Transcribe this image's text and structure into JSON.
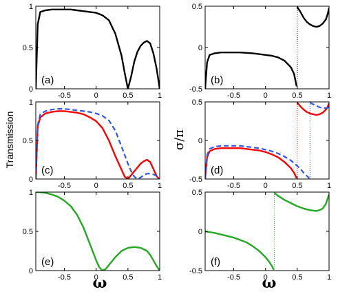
{
  "ylabels": {
    "left": "Transmission",
    "right": "σ/π"
  },
  "xlabels": {
    "left": "ω",
    "right": "ω"
  },
  "colors": {
    "black": "#000000",
    "red": "#ff0000",
    "blue": "#3355ee",
    "green": "#22aa22"
  },
  "chart_data": [
    {
      "id": "a",
      "panel_label": "(a)",
      "type": "line",
      "xlim": [
        -0.95,
        1
      ],
      "ylim": [
        0,
        1
      ],
      "xticks": [
        "-0.5",
        "0",
        "0.5",
        "1"
      ],
      "yticks": [
        "0",
        "0.5",
        "1"
      ],
      "series": [
        {
          "color": "black",
          "style": "solid",
          "x": [
            -0.95,
            -0.92,
            -0.88,
            -0.8,
            -0.7,
            -0.6,
            -0.5,
            -0.4,
            -0.3,
            -0.2,
            -0.1,
            0,
            0.1,
            0.2,
            0.3,
            0.4,
            0.45,
            0.5,
            0.55,
            0.6,
            0.65,
            0.7,
            0.75,
            0.8,
            0.85,
            0.9,
            0.95,
            0.98,
            1
          ],
          "y": [
            0,
            0.78,
            0.93,
            0.95,
            0.96,
            0.96,
            0.96,
            0.96,
            0.95,
            0.94,
            0.93,
            0.92,
            0.89,
            0.83,
            0.67,
            0.4,
            0.19,
            0.0,
            0.15,
            0.33,
            0.45,
            0.52,
            0.56,
            0.58,
            0.55,
            0.43,
            0.25,
            0.1,
            0
          ]
        }
      ]
    },
    {
      "id": "b",
      "panel_label": "(b)",
      "type": "line",
      "xlim": [
        -0.95,
        1
      ],
      "ylim": [
        -0.5,
        0.5
      ],
      "xticks": [
        "-0.5",
        "0",
        "0.5",
        "1"
      ],
      "yticks": [
        "-0.5",
        "0",
        "0.5"
      ],
      "vlines": [
        {
          "x": 0.5,
          "color": "black"
        }
      ],
      "series": [
        {
          "color": "black",
          "style": "solid",
          "x": [
            -0.95,
            -0.92,
            -0.88,
            -0.8,
            -0.7,
            -0.6,
            -0.5,
            -0.4,
            -0.3,
            -0.2,
            -0.1,
            0,
            0.1,
            0.2,
            0.3,
            0.4,
            0.45,
            0.49
          ],
          "y": [
            -0.5,
            -0.18,
            -0.09,
            -0.07,
            -0.06,
            -0.06,
            -0.06,
            -0.06,
            -0.065,
            -0.07,
            -0.08,
            -0.09,
            -0.1,
            -0.12,
            -0.16,
            -0.24,
            -0.32,
            -0.47
          ]
        },
        {
          "color": "black",
          "style": "solid",
          "x": [
            0.5,
            0.55,
            0.6,
            0.65,
            0.7,
            0.75,
            0.8,
            0.85,
            0.9,
            0.95,
            0.98,
            1
          ],
          "y": [
            0.49,
            0.43,
            0.36,
            0.31,
            0.28,
            0.26,
            0.25,
            0.26,
            0.29,
            0.34,
            0.41,
            0.48
          ]
        }
      ]
    },
    {
      "id": "c",
      "panel_label": "(c)",
      "type": "line",
      "xlim": [
        -0.95,
        1
      ],
      "ylim": [
        0,
        1
      ],
      "xticks": [
        "-0.5",
        "0",
        "0.5",
        "1"
      ],
      "yticks": [
        "0",
        "0.5",
        "1"
      ],
      "series": [
        {
          "color": "red",
          "style": "solid",
          "x": [
            -0.95,
            -0.92,
            -0.88,
            -0.8,
            -0.7,
            -0.6,
            -0.5,
            -0.4,
            -0.3,
            -0.2,
            -0.1,
            0,
            0.1,
            0.2,
            0.3,
            0.4,
            0.45,
            0.5,
            0.55,
            0.6,
            0.65,
            0.7,
            0.75,
            0.8,
            0.85,
            0.9,
            0.95,
            0.98,
            1
          ],
          "y": [
            0,
            0.68,
            0.8,
            0.85,
            0.87,
            0.88,
            0.88,
            0.87,
            0.86,
            0.84,
            0.8,
            0.75,
            0.66,
            0.5,
            0.3,
            0.12,
            0.03,
            0.0,
            0.05,
            0.1,
            0.15,
            0.2,
            0.23,
            0.25,
            0.22,
            0.13,
            0.04,
            0.01,
            0
          ]
        },
        {
          "color": "blue",
          "style": "dashed",
          "x": [
            -0.95,
            -0.92,
            -0.88,
            -0.8,
            -0.7,
            -0.6,
            -0.5,
            -0.4,
            -0.3,
            -0.2,
            -0.1,
            0,
            0.1,
            0.2,
            0.3,
            0.4,
            0.5,
            0.55,
            0.6,
            0.65,
            0.7,
            0.75,
            0.8,
            0.85,
            0.9,
            0.95,
            0.98,
            1
          ],
          "y": [
            0,
            0.7,
            0.84,
            0.88,
            0.9,
            0.91,
            0.91,
            0.9,
            0.89,
            0.88,
            0.87,
            0.85,
            0.82,
            0.76,
            0.63,
            0.42,
            0.2,
            0.1,
            0.03,
            0.0,
            0.02,
            0.05,
            0.07,
            0.07,
            0.06,
            0.04,
            0.02,
            0
          ]
        }
      ]
    },
    {
      "id": "d",
      "panel_label": "(d)",
      "type": "line",
      "xlim": [
        -0.95,
        1
      ],
      "ylim": [
        -0.5,
        0.5
      ],
      "xticks": [
        "-0.5",
        "0",
        "0.5",
        "1"
      ],
      "yticks": [
        "-0.5",
        "0",
        "0.5"
      ],
      "vlines": [
        {
          "x": 0.5,
          "color": "red"
        },
        {
          "x": 0.7,
          "color": "blue"
        }
      ],
      "series": [
        {
          "color": "red",
          "style": "solid",
          "x": [
            -0.95,
            -0.92,
            -0.88,
            -0.8,
            -0.7,
            -0.6,
            -0.5,
            -0.4,
            -0.3,
            -0.2,
            -0.1,
            0,
            0.1,
            0.2,
            0.3,
            0.4,
            0.45,
            0.49
          ],
          "y": [
            -0.5,
            -0.22,
            -0.14,
            -0.11,
            -0.1,
            -0.1,
            -0.1,
            -0.1,
            -0.11,
            -0.12,
            -0.13,
            -0.15,
            -0.18,
            -0.22,
            -0.28,
            -0.36,
            -0.42,
            -0.49
          ]
        },
        {
          "color": "red",
          "style": "solid",
          "x": [
            0.5,
            0.55,
            0.6,
            0.65,
            0.7,
            0.75,
            0.8,
            0.85,
            0.9,
            0.95,
            0.98,
            1
          ],
          "y": [
            0.49,
            0.44,
            0.4,
            0.37,
            0.35,
            0.34,
            0.33,
            0.34,
            0.36,
            0.4,
            0.44,
            0.48
          ]
        },
        {
          "color": "blue",
          "style": "dashed",
          "x": [
            -0.95,
            -0.92,
            -0.88,
            -0.8,
            -0.7,
            -0.6,
            -0.5,
            -0.4,
            -0.3,
            -0.2,
            -0.1,
            0,
            0.1,
            0.2,
            0.3,
            0.4,
            0.5,
            0.55,
            0.6,
            0.65,
            0.69
          ],
          "y": [
            -0.5,
            -0.19,
            -0.11,
            -0.08,
            -0.07,
            -0.07,
            -0.07,
            -0.07,
            -0.08,
            -0.09,
            -0.1,
            -0.12,
            -0.14,
            -0.17,
            -0.21,
            -0.26,
            -0.33,
            -0.37,
            -0.42,
            -0.46,
            -0.49
          ]
        },
        {
          "color": "blue",
          "style": "dashed",
          "x": [
            0.7,
            0.75,
            0.8,
            0.85,
            0.9,
            0.95,
            1
          ],
          "y": [
            0.49,
            0.47,
            0.45,
            0.43,
            0.42,
            0.42,
            0.43
          ]
        }
      ]
    },
    {
      "id": "e",
      "panel_label": "(e)",
      "type": "line",
      "xlim": [
        -0.95,
        1
      ],
      "ylim": [
        0,
        1
      ],
      "xticks": [
        "-0.5",
        "0",
        "0.5",
        "1"
      ],
      "yticks": [
        "0",
        "0.5",
        "1"
      ],
      "series": [
        {
          "color": "green",
          "style": "solid",
          "x": [
            -0.95,
            -0.9,
            -0.8,
            -0.7,
            -0.6,
            -0.5,
            -0.4,
            -0.3,
            -0.2,
            -0.1,
            0,
            0.05,
            0.1,
            0.15,
            0.2,
            0.3,
            0.4,
            0.5,
            0.6,
            0.7,
            0.8,
            0.85,
            0.9,
            0.95,
            1
          ],
          "y": [
            1.0,
            1.0,
            0.99,
            0.97,
            0.94,
            0.89,
            0.82,
            0.71,
            0.55,
            0.34,
            0.13,
            0.04,
            0.0,
            0.02,
            0.07,
            0.17,
            0.25,
            0.29,
            0.3,
            0.29,
            0.25,
            0.2,
            0.13,
            0.06,
            0
          ]
        }
      ]
    },
    {
      "id": "f",
      "panel_label": "(f)",
      "type": "line",
      "xlim": [
        -0.95,
        1
      ],
      "ylim": [
        -0.5,
        0.5
      ],
      "xticks": [
        "-0.5",
        "0",
        "0.5",
        "1"
      ],
      "yticks": [
        "-0.5",
        "0",
        "0.5"
      ],
      "vlines": [
        {
          "x": 0.14,
          "color": "green"
        }
      ],
      "series": [
        {
          "color": "green",
          "style": "solid",
          "x": [
            -0.95,
            -0.8,
            -0.7,
            -0.6,
            -0.5,
            -0.4,
            -0.3,
            -0.2,
            -0.1,
            0,
            0.05,
            0.1,
            0.13
          ],
          "y": [
            0.0,
            -0.02,
            -0.04,
            -0.06,
            -0.08,
            -0.11,
            -0.14,
            -0.19,
            -0.25,
            -0.33,
            -0.38,
            -0.44,
            -0.49
          ]
        },
        {
          "color": "green",
          "style": "solid",
          "x": [
            0.14,
            0.2,
            0.3,
            0.4,
            0.5,
            0.6,
            0.7,
            0.8,
            0.85,
            0.9,
            0.95,
            1
          ],
          "y": [
            0.49,
            0.45,
            0.4,
            0.36,
            0.32,
            0.29,
            0.27,
            0.26,
            0.27,
            0.29,
            0.35,
            0.47
          ]
        }
      ]
    }
  ]
}
